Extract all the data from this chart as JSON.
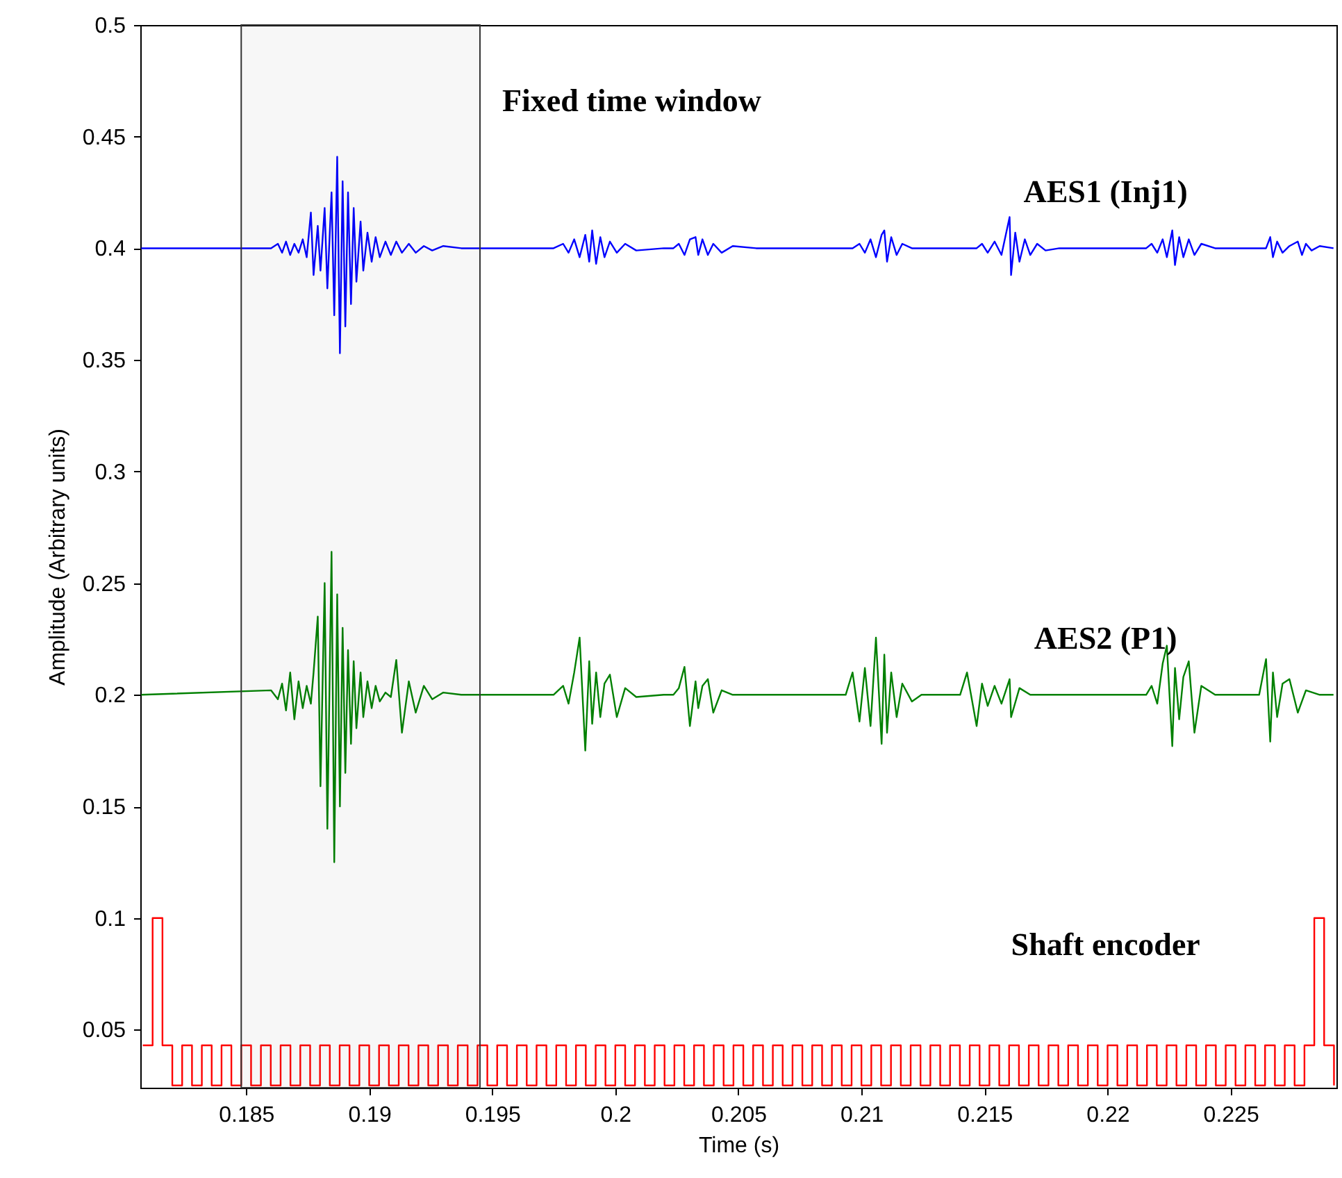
{
  "chart_data": {
    "type": "line",
    "xlabel": "Time (s)",
    "ylabel": "Amplitude (Arbitrary units)",
    "xlim": [
      0.1807,
      0.2293
    ],
    "ylim": [
      0.024,
      0.5
    ],
    "xticks": [
      0.185,
      0.19,
      0.195,
      0.2,
      0.205,
      0.21,
      0.215,
      0.22,
      0.225
    ],
    "yticks": [
      0.05,
      0.1,
      0.15,
      0.2,
      0.25,
      0.3,
      0.35,
      0.4,
      0.45,
      0.5
    ],
    "bands": [
      {
        "axis": "x",
        "from": 0.1848,
        "to": 0.1945,
        "label": "Fixed time window",
        "color": "#333333"
      }
    ],
    "series": [
      {
        "name": "AES1 (Inj1)",
        "color": "#0000ff",
        "x": [
          0.18074,
          0.18601,
          0.18629,
          0.18646,
          0.18662,
          0.18679,
          0.18696,
          0.18713,
          0.1873,
          0.18746,
          0.18763,
          0.18774,
          0.18791,
          0.18802,
          0.18819,
          0.1883,
          0.18847,
          0.18858,
          0.1887,
          0.18881,
          0.18892,
          0.18903,
          0.18914,
          0.18926,
          0.18937,
          0.18948,
          0.18965,
          0.18976,
          0.18993,
          0.1901,
          0.19026,
          0.19043,
          0.19066,
          0.19088,
          0.1911,
          0.19133,
          0.19161,
          0.19189,
          0.19222,
          0.19256,
          0.19301,
          0.19374,
          0.19749,
          0.19788,
          0.1981,
          0.19833,
          0.19855,
          0.19878,
          0.19894,
          0.19906,
          0.19922,
          0.19939,
          0.19956,
          0.19978,
          0.20006,
          0.2004,
          0.20085,
          0.20197,
          0.20236,
          0.20258,
          0.20281,
          0.20303,
          0.20326,
          0.20337,
          0.20354,
          0.20376,
          0.20398,
          0.20432,
          0.20477,
          0.20572,
          0.20964,
          0.20992,
          0.21014,
          0.21037,
          0.21059,
          0.21082,
          0.21093,
          0.21104,
          0.21121,
          0.21143,
          0.21166,
          0.21205,
          0.21468,
          0.2149,
          0.21513,
          0.21541,
          0.21569,
          0.21602,
          0.21608,
          0.21625,
          0.21642,
          0.21664,
          0.21686,
          0.21714,
          0.21748,
          0.21804,
          0.22157,
          0.22179,
          0.22202,
          0.22224,
          0.22241,
          0.22263,
          0.22274,
          0.22291,
          0.22308,
          0.2233,
          0.22353,
          0.22381,
          0.22437,
          0.22644,
          0.22661,
          0.22672,
          0.22689,
          0.22711,
          0.22739,
          0.22773,
          0.2279,
          0.22806,
          0.22829,
          0.22862,
          0.22918
        ],
        "values": [
          0.4,
          0.4,
          0.402,
          0.398,
          0.403,
          0.397,
          0.402,
          0.398,
          0.404,
          0.396,
          0.416,
          0.388,
          0.41,
          0.39,
          0.418,
          0.382,
          0.425,
          0.37,
          0.441,
          0.353,
          0.43,
          0.365,
          0.425,
          0.375,
          0.418,
          0.385,
          0.412,
          0.39,
          0.407,
          0.394,
          0.405,
          0.396,
          0.403,
          0.397,
          0.403,
          0.398,
          0.402,
          0.398,
          0.401,
          0.399,
          0.401,
          0.4,
          0.4,
          0.402,
          0.398,
          0.404,
          0.396,
          0.406,
          0.394,
          0.408,
          0.393,
          0.405,
          0.396,
          0.403,
          0.398,
          0.402,
          0.399,
          0.4,
          0.4,
          0.402,
          0.397,
          0.404,
          0.405,
          0.397,
          0.404,
          0.397,
          0.402,
          0.398,
          0.401,
          0.4,
          0.4,
          0.402,
          0.398,
          0.404,
          0.396,
          0.406,
          0.408,
          0.394,
          0.405,
          0.397,
          0.402,
          0.4,
          0.4,
          0.402,
          0.398,
          0.403,
          0.397,
          0.414,
          0.388,
          0.407,
          0.394,
          0.404,
          0.397,
          0.402,
          0.399,
          0.4,
          0.4,
          0.402,
          0.398,
          0.404,
          0.396,
          0.408,
          0.3925,
          0.405,
          0.396,
          0.404,
          0.397,
          0.402,
          0.4,
          0.4,
          0.405,
          0.396,
          0.403,
          0.398,
          0.401,
          0.403,
          0.397,
          0.402,
          0.399,
          0.401,
          0.4
        ]
      },
      {
        "name": "AES2 (P1)",
        "color": "#008000",
        "x": [
          0.18074,
          0.18601,
          0.18629,
          0.18646,
          0.18662,
          0.18679,
          0.18696,
          0.18713,
          0.1873,
          0.18746,
          0.18763,
          0.18774,
          0.18791,
          0.18802,
          0.18819,
          0.1883,
          0.18847,
          0.18858,
          0.1887,
          0.18881,
          0.18892,
          0.18903,
          0.18914,
          0.18926,
          0.18937,
          0.18948,
          0.18965,
          0.18976,
          0.18993,
          0.1901,
          0.19026,
          0.19043,
          0.19066,
          0.19088,
          0.1911,
          0.19133,
          0.19161,
          0.19189,
          0.19222,
          0.19256,
          0.19301,
          0.19374,
          0.19749,
          0.19788,
          0.1981,
          0.19833,
          0.19855,
          0.19878,
          0.19894,
          0.19906,
          0.19922,
          0.19939,
          0.19956,
          0.19978,
          0.20006,
          0.2004,
          0.20085,
          0.20197,
          0.20236,
          0.20258,
          0.20281,
          0.20303,
          0.20326,
          0.20337,
          0.20354,
          0.20376,
          0.20398,
          0.20432,
          0.20477,
          0.20572,
          0.20936,
          0.20964,
          0.20992,
          0.21014,
          0.21037,
          0.21059,
          0.21082,
          0.21093,
          0.21104,
          0.21121,
          0.21143,
          0.21166,
          0.21205,
          0.21244,
          0.21401,
          0.21429,
          0.21468,
          0.2149,
          0.21513,
          0.21541,
          0.21569,
          0.21602,
          0.21608,
          0.21642,
          0.21686,
          0.21804,
          0.22157,
          0.22179,
          0.22202,
          0.22224,
          0.22241,
          0.22263,
          0.22274,
          0.22291,
          0.22308,
          0.2233,
          0.22353,
          0.22381,
          0.22437,
          0.22616,
          0.22644,
          0.22661,
          0.22672,
          0.22689,
          0.22711,
          0.22739,
          0.22773,
          0.22806,
          0.22862,
          0.22918
        ],
        "values": [
          0.2,
          0.202,
          0.198,
          0.205,
          0.193,
          0.21,
          0.189,
          0.206,
          0.194,
          0.204,
          0.196,
          0.21,
          0.235,
          0.159,
          0.25,
          0.14,
          0.264,
          0.125,
          0.245,
          0.15,
          0.23,
          0.165,
          0.22,
          0.178,
          0.215,
          0.185,
          0.21,
          0.19,
          0.206,
          0.194,
          0.204,
          0.197,
          0.201,
          0.199,
          0.2156,
          0.183,
          0.206,
          0.192,
          0.204,
          0.198,
          0.201,
          0.2,
          0.2,
          0.204,
          0.196,
          0.21,
          0.2256,
          0.175,
          0.215,
          0.187,
          0.21,
          0.19,
          0.205,
          0.209,
          0.19,
          0.203,
          0.199,
          0.2,
          0.2,
          0.203,
          0.2125,
          0.186,
          0.206,
          0.194,
          0.204,
          0.207,
          0.192,
          0.202,
          0.2,
          0.2,
          0.2,
          0.21,
          0.188,
          0.212,
          0.186,
          0.2256,
          0.178,
          0.218,
          0.183,
          0.21,
          0.19,
          0.205,
          0.197,
          0.2,
          0.2,
          0.21,
          0.186,
          0.205,
          0.195,
          0.204,
          0.196,
          0.207,
          0.19,
          0.203,
          0.2,
          0.2,
          0.2,
          0.204,
          0.196,
          0.214,
          0.222,
          0.177,
          0.212,
          0.189,
          0.208,
          0.215,
          0.183,
          0.204,
          0.2,
          0.2,
          0.216,
          0.179,
          0.21,
          0.19,
          0.205,
          0.207,
          0.192,
          0.202,
          0.2,
          0.2
        ]
      },
      {
        "name": "Shaft encoder",
        "color": "#ff0000",
        "type": "step",
        "x": [
          0.1808,
          0.1812,
          0.1816,
          0.182,
          0.1824,
          0.1828,
          0.1832,
          0.1836,
          0.184,
          0.1844,
          0.1848,
          0.1852,
          0.1856,
          0.186,
          0.1864,
          0.1868,
          0.1872,
          0.1876,
          0.188,
          0.1884,
          0.1888,
          0.1892,
          0.1896,
          0.19,
          0.1904,
          0.1908,
          0.1912,
          0.1916,
          0.192,
          0.1924,
          0.1928,
          0.1932,
          0.1936,
          0.194,
          0.1944,
          0.1948,
          0.1952,
          0.1956,
          0.196,
          0.1964,
          0.1968,
          0.1972,
          0.1976,
          0.198,
          0.1984,
          0.1988,
          0.1992,
          0.1996,
          0.2,
          0.2004,
          0.2008,
          0.2012,
          0.2016,
          0.202,
          0.2024,
          0.2028,
          0.2032,
          0.2036,
          0.204,
          0.2044,
          0.2048,
          0.2052,
          0.2056,
          0.206,
          0.2064,
          0.2068,
          0.2072,
          0.2076,
          0.208,
          0.2084,
          0.2088,
          0.2092,
          0.2096,
          0.21,
          0.2104,
          0.2108,
          0.2112,
          0.2116,
          0.212,
          0.2124,
          0.2128,
          0.2132,
          0.2136,
          0.214,
          0.2144,
          0.2148,
          0.2152,
          0.2156,
          0.216,
          0.2164,
          0.2168,
          0.2172,
          0.2176,
          0.218,
          0.2184,
          0.2188,
          0.2192,
          0.2196,
          0.22,
          0.2204,
          0.2208,
          0.2212,
          0.2216,
          0.222,
          0.2224,
          0.2228,
          0.2232,
          0.2236,
          0.224,
          0.2244,
          0.2248,
          0.2252,
          0.2256,
          0.226,
          0.2264,
          0.2268,
          0.2272,
          0.2276,
          0.228,
          0.2284,
          0.2288,
          0.2292
        ],
        "values": [
          0.043,
          0.1,
          0.043,
          0.025,
          0.043,
          0.025,
          0.043,
          0.025,
          0.043,
          0.025,
          0.043,
          0.025,
          0.043,
          0.025,
          0.043,
          0.025,
          0.043,
          0.025,
          0.043,
          0.025,
          0.043,
          0.025,
          0.043,
          0.025,
          0.043,
          0.025,
          0.043,
          0.025,
          0.043,
          0.025,
          0.043,
          0.025,
          0.043,
          0.025,
          0.043,
          0.025,
          0.043,
          0.025,
          0.043,
          0.025,
          0.043,
          0.025,
          0.043,
          0.025,
          0.043,
          0.025,
          0.043,
          0.025,
          0.043,
          0.025,
          0.043,
          0.025,
          0.043,
          0.025,
          0.043,
          0.025,
          0.043,
          0.025,
          0.043,
          0.025,
          0.043,
          0.025,
          0.043,
          0.025,
          0.043,
          0.025,
          0.043,
          0.025,
          0.043,
          0.025,
          0.043,
          0.025,
          0.043,
          0.025,
          0.043,
          0.025,
          0.043,
          0.025,
          0.043,
          0.025,
          0.043,
          0.025,
          0.043,
          0.025,
          0.043,
          0.025,
          0.043,
          0.025,
          0.043,
          0.025,
          0.043,
          0.025,
          0.043,
          0.025,
          0.043,
          0.025,
          0.043,
          0.025,
          0.043,
          0.025,
          0.043,
          0.025,
          0.043,
          0.025,
          0.043,
          0.025,
          0.043,
          0.025,
          0.043,
          0.025,
          0.043,
          0.025,
          0.043,
          0.025,
          0.043,
          0.025,
          0.043,
          0.025,
          0.043,
          0.1,
          0.043,
          0.025
        ]
      }
    ]
  }
}
